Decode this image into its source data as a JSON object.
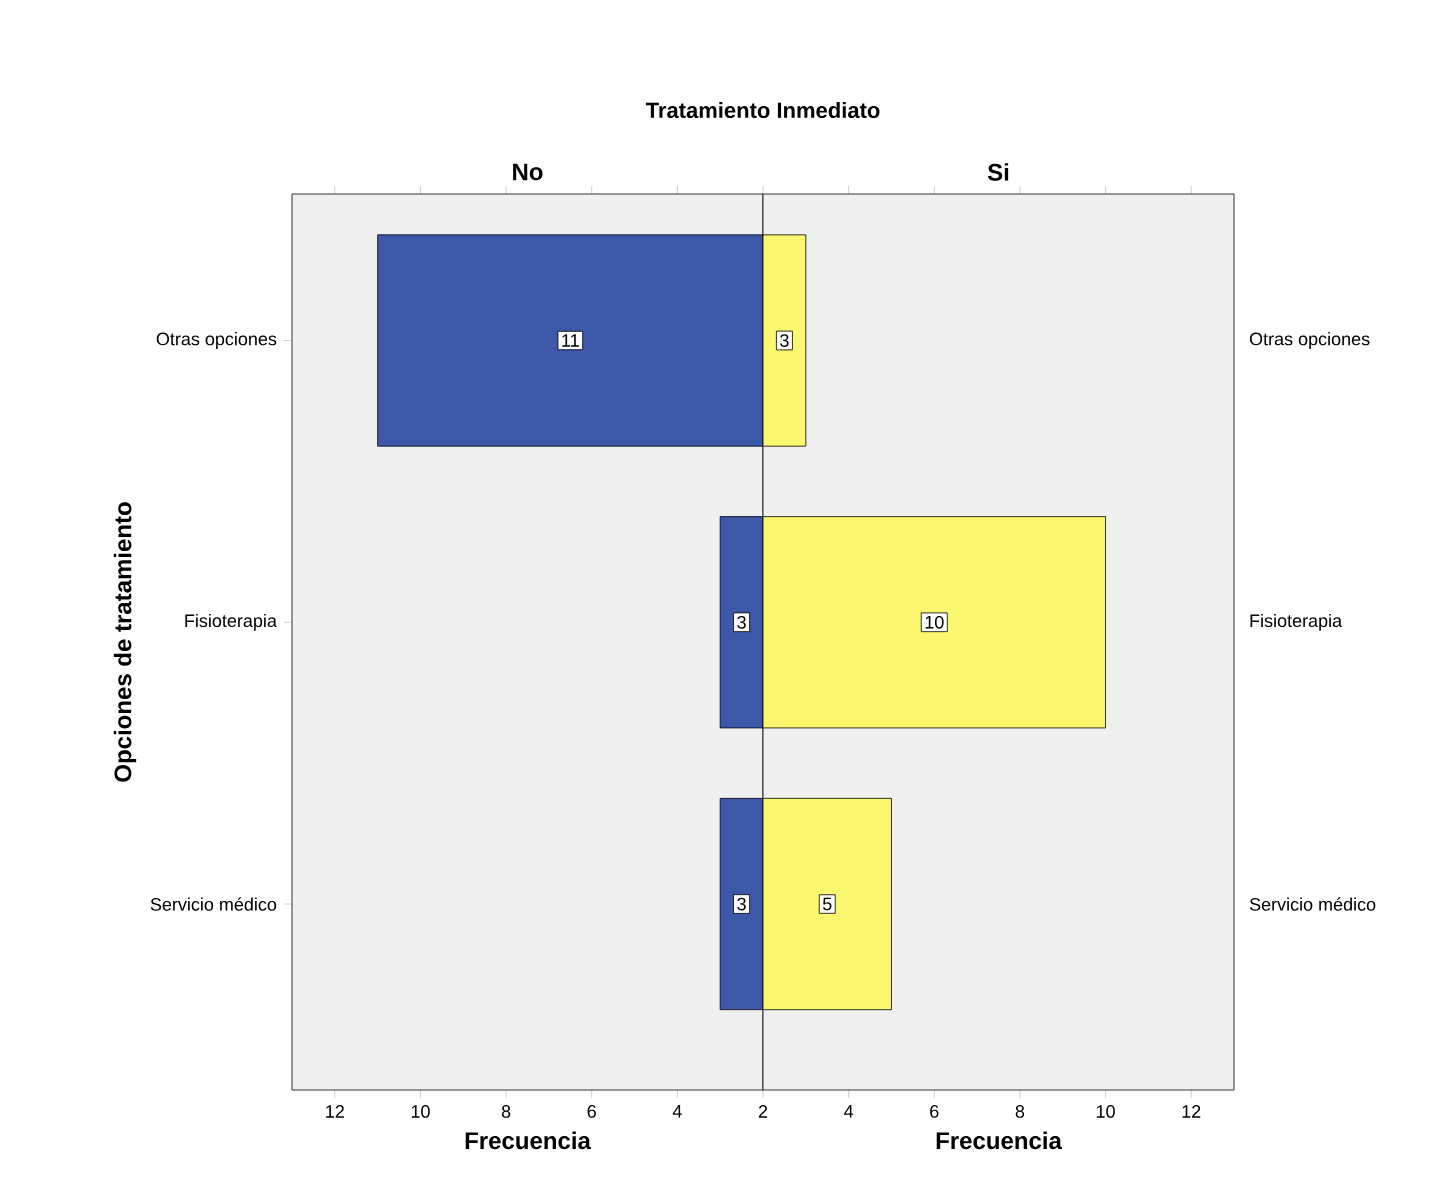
{
  "chart_data": [
    {
      "type": "bar",
      "orientation": "horizontal",
      "title": "Tratamiento Inmediato",
      "subtitle": "No",
      "categories": [
        "Otras opciones",
        "Fisioterapia",
        "Servicio médico"
      ],
      "series": [
        {
          "color": "#3d57a9",
          "values": [
            11,
            3,
            3
          ]
        }
      ],
      "xlim": [
        13,
        2
      ],
      "xticks": [
        12,
        10,
        8,
        6,
        4,
        2
      ],
      "xlabel": "Frecuencia",
      "ylabel": "Opciones de tratamiento",
      "data_labels": true
    },
    {
      "type": "bar",
      "orientation": "horizontal",
      "subtitle": "Si",
      "categories": [
        "Otras opciones",
        "Fisioterapia",
        "Servicio médico"
      ],
      "series": [
        {
          "color": "#fbf76f",
          "values": [
            3,
            10,
            5
          ]
        }
      ],
      "xlim": [
        2,
        13
      ],
      "xticks": [
        4,
        6,
        8,
        10,
        12
      ],
      "xlabel": "Frecuencia",
      "data_labels": true
    }
  ]
}
